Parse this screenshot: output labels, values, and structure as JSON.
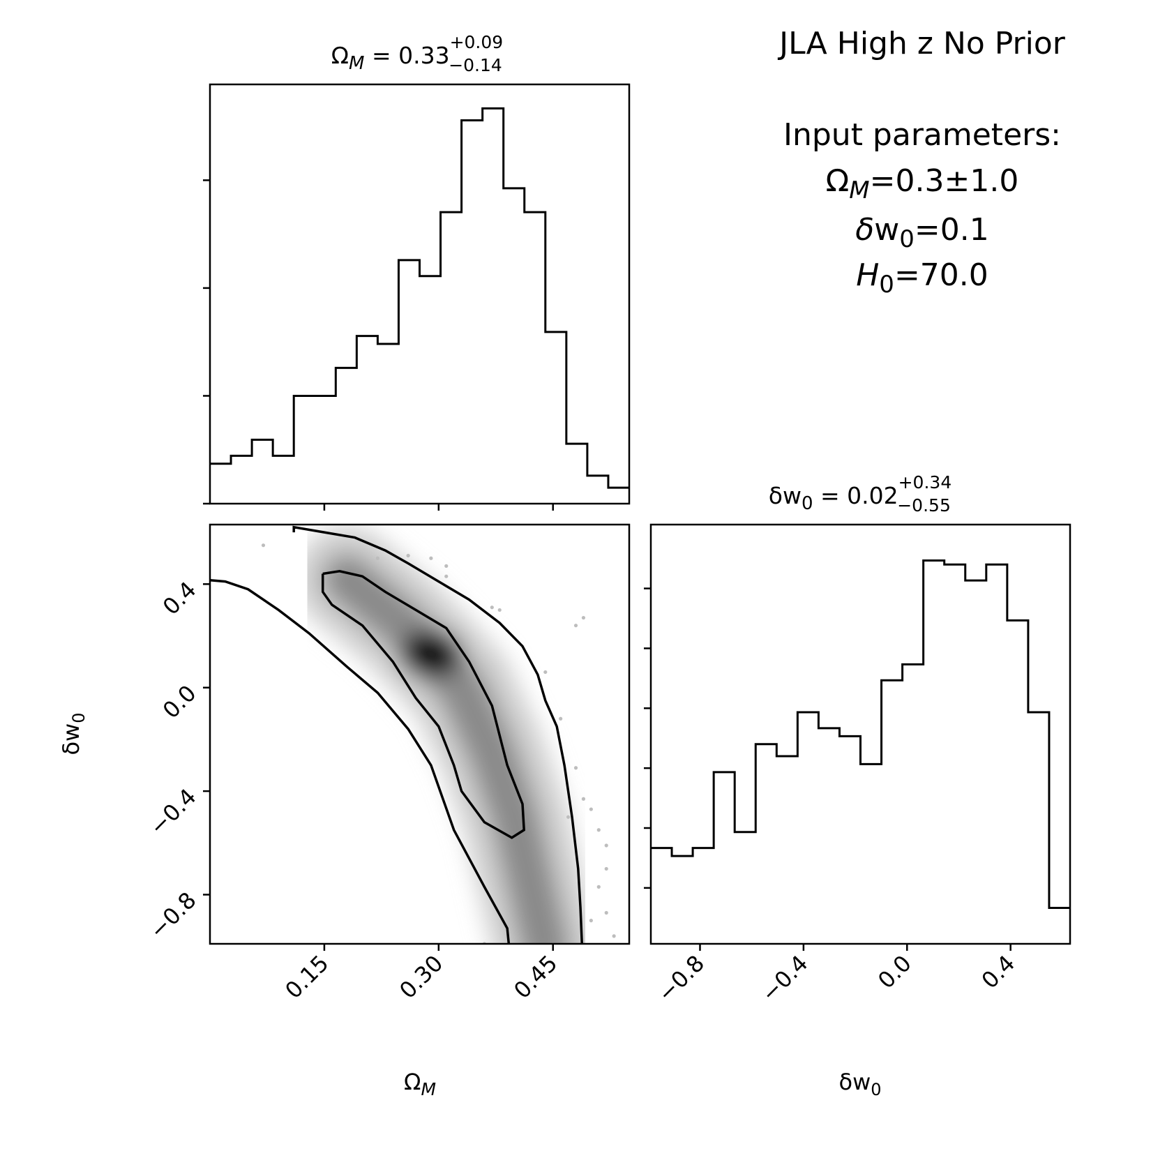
{
  "chart_data": [
    {
      "type": "histogram",
      "panel": "top-left",
      "title_html": "Ω<tspan font-style='italic' font-size='26' dy='8'>M</tspan><tspan dy='-8'> = 0.33</tspan><tspan font-size='25' dy='-22'>+0.09</tspan><tspan font-size='25' dx='-78' dy='33'>−0.14</tspan>",
      "xlim": [
        0.0,
        0.55
      ],
      "ylim": [
        0,
        1.05
      ],
      "bin_edges": [
        0.0,
        0.0275,
        0.055,
        0.0825,
        0.11,
        0.1375,
        0.165,
        0.1925,
        0.22,
        0.2475,
        0.275,
        0.3025,
        0.33,
        0.3575,
        0.385,
        0.4125,
        0.44,
        0.4675,
        0.495,
        0.5225,
        0.55
      ],
      "counts": [
        0.1,
        0.12,
        0.16,
        0.12,
        0.27,
        0.27,
        0.34,
        0.42,
        0.4,
        0.61,
        0.57,
        0.73,
        0.96,
        0.99,
        0.79,
        0.73,
        0.43,
        0.15,
        0.07,
        0.04
      ],
      "xticks": [
        0.15,
        0.3,
        0.45
      ],
      "yticks": [
        0,
        0.27,
        0.54,
        0.81
      ],
      "show_labels": false
    },
    {
      "type": "heatmap",
      "panel": "bottom-left",
      "xlim": [
        0.0,
        0.55
      ],
      "ylim": [
        -0.99,
        0.63
      ],
      "xticks": [
        0.15,
        0.3,
        0.45
      ],
      "xtick_labels": [
        "0.15",
        "0.30",
        "0.45"
      ],
      "yticks": [
        -0.8,
        -0.4,
        0.0,
        0.4
      ],
      "ytick_labels": [
        "−0.8",
        "−0.4",
        "0.0",
        "0.4"
      ],
      "xlabel_html": "Ω<tspan font-style='italic' font-size='25' dy='8'>M</tspan>",
      "ylabel_html": "δw<tspan font-size='24' dy='8'>0</tspan>",
      "density_ridge": [
        [
          0.18,
          0.42
        ],
        [
          0.25,
          0.25
        ],
        [
          0.29,
          0.13
        ],
        [
          0.33,
          0.0
        ],
        [
          0.37,
          -0.25
        ],
        [
          0.4,
          -0.5
        ],
        [
          0.42,
          -0.75
        ],
        [
          0.44,
          -1.0
        ]
      ],
      "contour_inner": [
        [
          0.148,
          0.44
        ],
        [
          0.17,
          0.45
        ],
        [
          0.2,
          0.43
        ],
        [
          0.23,
          0.37
        ],
        [
          0.27,
          0.3
        ],
        [
          0.31,
          0.23
        ],
        [
          0.34,
          0.1
        ],
        [
          0.37,
          -0.07
        ],
        [
          0.39,
          -0.3
        ],
        [
          0.41,
          -0.45
        ],
        [
          0.412,
          -0.55
        ],
        [
          0.396,
          -0.58
        ],
        [
          0.36,
          -0.52
        ],
        [
          0.33,
          -0.4
        ],
        [
          0.32,
          -0.3
        ],
        [
          0.3,
          -0.15
        ],
        [
          0.27,
          -0.04
        ],
        [
          0.24,
          0.1
        ],
        [
          0.2,
          0.24
        ],
        [
          0.16,
          0.32
        ],
        [
          0.148,
          0.37
        ],
        [
          0.148,
          0.44
        ]
      ],
      "contour_outer": [
        [
          0.0,
          0.415
        ],
        [
          0.02,
          0.41
        ],
        [
          0.05,
          0.38
        ],
        [
          0.09,
          0.3
        ],
        [
          0.13,
          0.21
        ],
        [
          0.18,
          0.08
        ],
        [
          0.22,
          -0.02
        ],
        [
          0.26,
          -0.16
        ],
        [
          0.29,
          -0.3
        ],
        [
          0.32,
          -0.55
        ],
        [
          0.36,
          -0.77
        ],
        [
          0.39,
          -0.93
        ],
        [
          0.392,
          -0.99
        ]
      ],
      "contour_outer_b": [
        [
          0.11,
          0.6
        ],
        [
          0.11,
          0.62
        ],
        [
          0.15,
          0.6
        ],
        [
          0.19,
          0.58
        ],
        [
          0.23,
          0.53
        ],
        [
          0.26,
          0.48
        ],
        [
          0.3,
          0.41
        ],
        [
          0.34,
          0.34
        ],
        [
          0.38,
          0.25
        ],
        [
          0.41,
          0.16
        ],
        [
          0.43,
          0.05
        ],
        [
          0.44,
          -0.05
        ],
        [
          0.455,
          -0.15
        ],
        [
          0.465,
          -0.3
        ],
        [
          0.475,
          -0.5
        ],
        [
          0.483,
          -0.7
        ],
        [
          0.486,
          -0.85
        ],
        [
          0.488,
          -0.99
        ]
      ],
      "outlier_points": [
        [
          0.29,
          0.5
        ],
        [
          0.31,
          0.47
        ],
        [
          0.37,
          0.31
        ],
        [
          0.38,
          0.3
        ],
        [
          0.48,
          0.24
        ],
        [
          0.49,
          0.27
        ],
        [
          0.44,
          0.06
        ],
        [
          0.48,
          -0.31
        ],
        [
          0.49,
          -0.43
        ],
        [
          0.5,
          -0.47
        ],
        [
          0.51,
          -0.55
        ],
        [
          0.52,
          -0.7
        ],
        [
          0.51,
          -0.77
        ],
        [
          0.52,
          -0.87
        ],
        [
          0.53,
          -0.96
        ],
        [
          0.5,
          -0.9
        ],
        [
          0.36,
          -0.99
        ],
        [
          0.52,
          -0.61
        ],
        [
          0.31,
          0.43
        ],
        [
          0.22,
          0.5
        ],
        [
          0.26,
          0.51
        ],
        [
          0.07,
          0.55
        ],
        [
          0.46,
          -0.12
        ],
        [
          0.47,
          -0.5
        ]
      ]
    },
    {
      "type": "histogram",
      "panel": "bottom-right",
      "title_html": "δw<tspan font-size='26' dy='8'>0</tspan><tspan dy='-8'> = 0.02</tspan><tspan font-size='25' dy='-22'>+0.34</tspan><tspan font-size='25' dx='-78' dy='33'>−0.55</tspan>",
      "xlim": [
        -0.99,
        0.63
      ],
      "ylim": [
        0,
        1.05
      ],
      "bin_edges": [
        -0.99,
        -0.909,
        -0.828,
        -0.747,
        -0.666,
        -0.585,
        -0.504,
        -0.423,
        -0.342,
        -0.261,
        -0.18,
        -0.099,
        -0.018,
        0.063,
        0.144,
        0.225,
        0.306,
        0.387,
        0.468,
        0.549,
        0.63
      ],
      "counts": [
        0.24,
        0.22,
        0.24,
        0.43,
        0.28,
        0.5,
        0.47,
        0.58,
        0.54,
        0.52,
        0.45,
        0.66,
        0.7,
        0.96,
        0.95,
        0.91,
        0.95,
        0.81,
        0.58,
        0.09
      ],
      "xticks": [
        -0.8,
        -0.4,
        0.0,
        0.4
      ],
      "xtick_labels": [
        "−0.8",
        "−0.4",
        "0.0",
        "0.4"
      ],
      "xlabel_html": "δw<tspan font-size='24' dy='8'>0</tspan>",
      "yticks": [
        0.14,
        0.29,
        0.44,
        0.59,
        0.74,
        0.89
      ],
      "show_labels": false
    }
  ],
  "info": {
    "title": "JLA High z No Prior",
    "subtitle": "Input parameters:",
    "lines_html": [
      "Ω<tspan font-style='italic' font-size='34' dy='10'>M</tspan><tspan dy='-10'>=0.3±1.0</tspan>",
      "<tspan font-style='italic'>δ</tspan>w<tspan font-size='34' dy='10'>0</tspan><tspan dy='-10'>=0.1</tspan>",
      "<tspan font-style='italic'>H</tspan><tspan font-size='34' dy='10'>0</tspan><tspan dy='-10'>=70.0</tspan>"
    ]
  }
}
